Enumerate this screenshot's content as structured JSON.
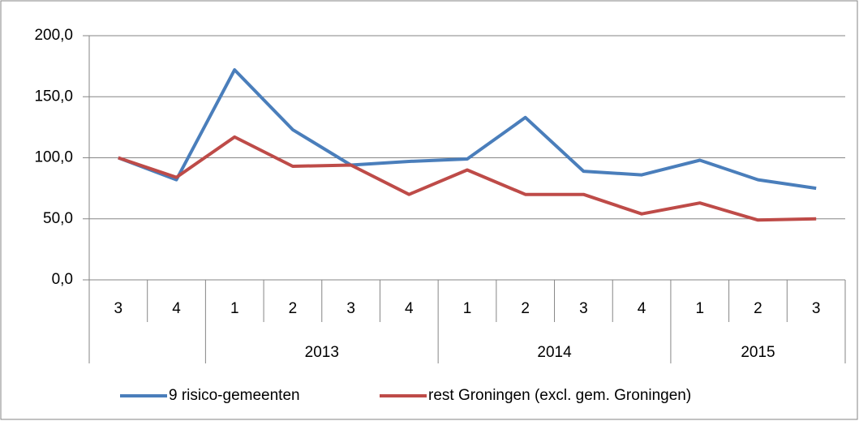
{
  "chart_data": {
    "type": "line",
    "categories": [
      "3",
      "4",
      "1",
      "2",
      "3",
      "4",
      "1",
      "2",
      "3",
      "4",
      "1",
      "2",
      "3"
    ],
    "x_groups": [
      null,
      null,
      "2013",
      "2013",
      "2013",
      "2013",
      "2014",
      "2014",
      "2014",
      "2014",
      "2015",
      "2015",
      "2015"
    ],
    "series": [
      {
        "name": "9 risico-gemeenten",
        "color": "#4a7ebb",
        "values": [
          100,
          82,
          172,
          123,
          94,
          97,
          99,
          133,
          89,
          86,
          98,
          82,
          75
        ]
      },
      {
        "name": "rest Groningen (excl. gem. Groningen)",
        "color": "#be4b48",
        "values": [
          100,
          84,
          117,
          93,
          94,
          70,
          90,
          70,
          70,
          54,
          63,
          49,
          50
        ]
      }
    ],
    "ylim": [
      0,
      200
    ],
    "yticks": [
      {
        "value": 0,
        "label": "0,0"
      },
      {
        "value": 50,
        "label": "50,0"
      },
      {
        "value": 100,
        "label": "100,0"
      },
      {
        "value": 150,
        "label": "150,0"
      },
      {
        "value": 200,
        "label": "200,0"
      }
    ],
    "grid": true,
    "legend": "bottom"
  }
}
